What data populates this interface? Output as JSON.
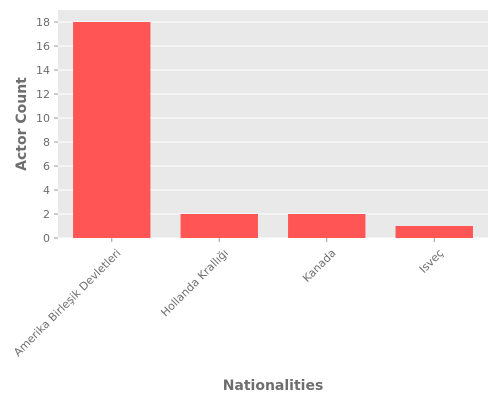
{
  "chart_data": {
    "type": "bar",
    "categories": [
      "Amerika Birleşik Devletleri",
      "Hollanda Krallığı",
      "Kanada",
      "Isveç"
    ],
    "values": [
      18,
      2,
      2,
      1
    ],
    "title": "",
    "xlabel": "Nationalities",
    "ylabel": "Actor Count",
    "ylim": [
      0,
      19
    ],
    "yticks": [
      0,
      2,
      4,
      6,
      8,
      10,
      12,
      14,
      16,
      18
    ],
    "grid": true,
    "colors": {
      "bar": "#ff5555",
      "plot_background": "#e9e9e9",
      "grid": "#ffffff",
      "text": "#6e6e6e"
    }
  }
}
